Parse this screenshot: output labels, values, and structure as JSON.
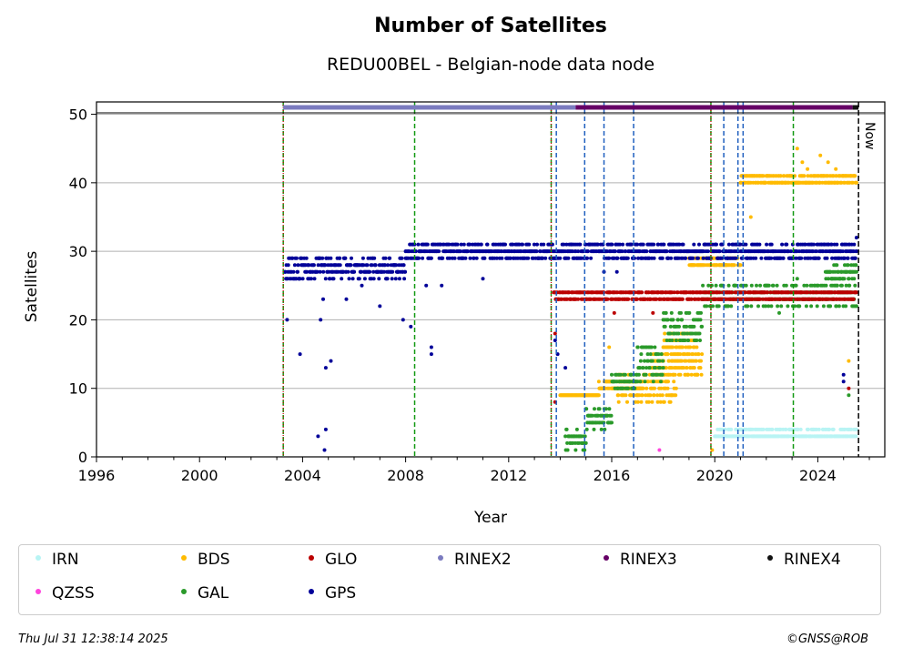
{
  "chart_data": {
    "type": "scatter",
    "title": "Number of Satellites",
    "subtitle": "REDU00BEL - Belgian-node data node",
    "xlabel": "Year",
    "ylabel": "Satellites",
    "xlim": [
      1996,
      2026.6
    ],
    "ylim": [
      0,
      51.8
    ],
    "xticks": [
      1996,
      2000,
      2004,
      2008,
      2012,
      2016,
      2020,
      2024
    ],
    "yticks": [
      0,
      10,
      20,
      30,
      40,
      50
    ],
    "grid": "horizontal",
    "legend_position": "bottom",
    "now_label": "Now",
    "now_x": 2025.58,
    "rinex_bar_y": 51,
    "vlines_green": [
      2003.25,
      2008.35,
      2013.65,
      2019.85,
      2023.05
    ],
    "vlines_red": [
      2003.25,
      2013.65,
      2019.85
    ],
    "vlines_blue": [
      2013.85,
      2014.95,
      2015.7,
      2016.85,
      2020.35,
      2020.9,
      2021.1
    ],
    "series": [
      {
        "name": "IRN",
        "color": "#b8f4f4",
        "segments": [
          [
            2020.0,
            2025.5,
            2.5,
            4
          ]
        ],
        "points": []
      },
      {
        "name": "QZSS",
        "color": "#ff44dd",
        "segments": [],
        "points": [
          [
            2017.85,
            1
          ]
        ]
      },
      {
        "name": "BDS",
        "color": "#ffbb00",
        "segments": [
          [
            2014.0,
            2015.5,
            8.5,
            9
          ],
          [
            2015.5,
            2017.2,
            9.5,
            11
          ],
          [
            2016.2,
            2018.5,
            8,
            12
          ],
          [
            2017.5,
            2019.5,
            12,
            15
          ],
          [
            2018.0,
            2019.3,
            15,
            18
          ],
          [
            2019.0,
            2021.0,
            28,
            29
          ],
          [
            2021.0,
            2025.5,
            40,
            41
          ]
        ],
        "points": [
          [
            2023.2,
            45
          ],
          [
            2023.4,
            43
          ],
          [
            2023.6,
            42
          ],
          [
            2024.1,
            44
          ],
          [
            2024.4,
            43
          ],
          [
            2024.7,
            42
          ],
          [
            2025.0,
            41
          ],
          [
            2021.4,
            35
          ],
          [
            2015.9,
            16
          ],
          [
            2019.9,
            1
          ],
          [
            2025.2,
            14
          ]
        ]
      },
      {
        "name": "GAL",
        "color": "#2a9a2a",
        "segments": [
          [
            2014.2,
            2015.0,
            1,
            4
          ],
          [
            2015.0,
            2016.0,
            4,
            7
          ],
          [
            2016.0,
            2017.0,
            10,
            12
          ],
          [
            2017.0,
            2018.0,
            11,
            16
          ],
          [
            2018.0,
            2019.5,
            17,
            21
          ],
          [
            2019.5,
            2020.8,
            22,
            25
          ],
          [
            2020.8,
            2025.5,
            22,
            25
          ],
          [
            2024.3,
            2025.5,
            26,
            28
          ]
        ],
        "points": [
          [
            2025.2,
            9
          ],
          [
            2022.5,
            21
          ],
          [
            2023.2,
            26
          ]
        ]
      },
      {
        "name": "GLO",
        "color": "#bb0000",
        "segments": [
          [
            2013.75,
            2025.5,
            23,
            24
          ]
        ],
        "points": [
          [
            2013.8,
            18
          ],
          [
            2013.8,
            8
          ],
          [
            2016.1,
            21
          ],
          [
            2017.6,
            21
          ],
          [
            2025.2,
            10
          ]
        ]
      },
      {
        "name": "GPS",
        "color": "#000099",
        "segments": [
          [
            2003.3,
            2008.0,
            26,
            29
          ],
          [
            2008.0,
            2013.7,
            29,
            31
          ],
          [
            2013.7,
            2025.5,
            29,
            31
          ]
        ],
        "points": [
          [
            2003.4,
            20
          ],
          [
            2003.9,
            15
          ],
          [
            2004.6,
            3
          ],
          [
            2004.9,
            4
          ],
          [
            2004.85,
            1
          ],
          [
            2004.9,
            13
          ],
          [
            2005.1,
            14
          ],
          [
            2004.7,
            20
          ],
          [
            2004.8,
            23
          ],
          [
            2005.7,
            23
          ],
          [
            2006.3,
            25
          ],
          [
            2007.0,
            22
          ],
          [
            2007.9,
            20
          ],
          [
            2008.2,
            19
          ],
          [
            2008.8,
            25
          ],
          [
            2009.0,
            15
          ],
          [
            2009.0,
            16
          ],
          [
            2009.4,
            25
          ],
          [
            2011.0,
            26
          ],
          [
            2013.8,
            17
          ],
          [
            2013.9,
            15
          ],
          [
            2014.2,
            13
          ],
          [
            2015.7,
            27
          ],
          [
            2016.2,
            27
          ],
          [
            2025.0,
            12
          ],
          [
            2025.0,
            11
          ],
          [
            2025.5,
            32
          ]
        ]
      }
    ],
    "rinex": [
      {
        "name": "RINEX2",
        "color": "#7b7bbf",
        "from": 2003.25,
        "to": 2014.6
      },
      {
        "name": "RINEX3",
        "color": "#660066",
        "from": 2014.6,
        "to": 2025.35
      },
      {
        "name": "RINEX4",
        "color": "#111111",
        "from": 2025.35,
        "to": 2025.58
      }
    ]
  },
  "legend": [
    {
      "label": "IRN",
      "color": "#b8f4f4"
    },
    {
      "label": "BDS",
      "color": "#ffbb00"
    },
    {
      "label": "GLO",
      "color": "#bb0000"
    },
    {
      "label": "RINEX2",
      "color": "#7b7bbf"
    },
    {
      "label": "RINEX3",
      "color": "#660066"
    },
    {
      "label": "RINEX4",
      "color": "#111111"
    },
    {
      "label": "QZSS",
      "color": "#ff44dd"
    },
    {
      "label": "GAL",
      "color": "#2a9a2a"
    },
    {
      "label": "GPS",
      "color": "#000099"
    }
  ],
  "footer": {
    "timestamp": "Thu Jul 31 12:38:14 2025",
    "credit": "©GNSS@ROB"
  }
}
